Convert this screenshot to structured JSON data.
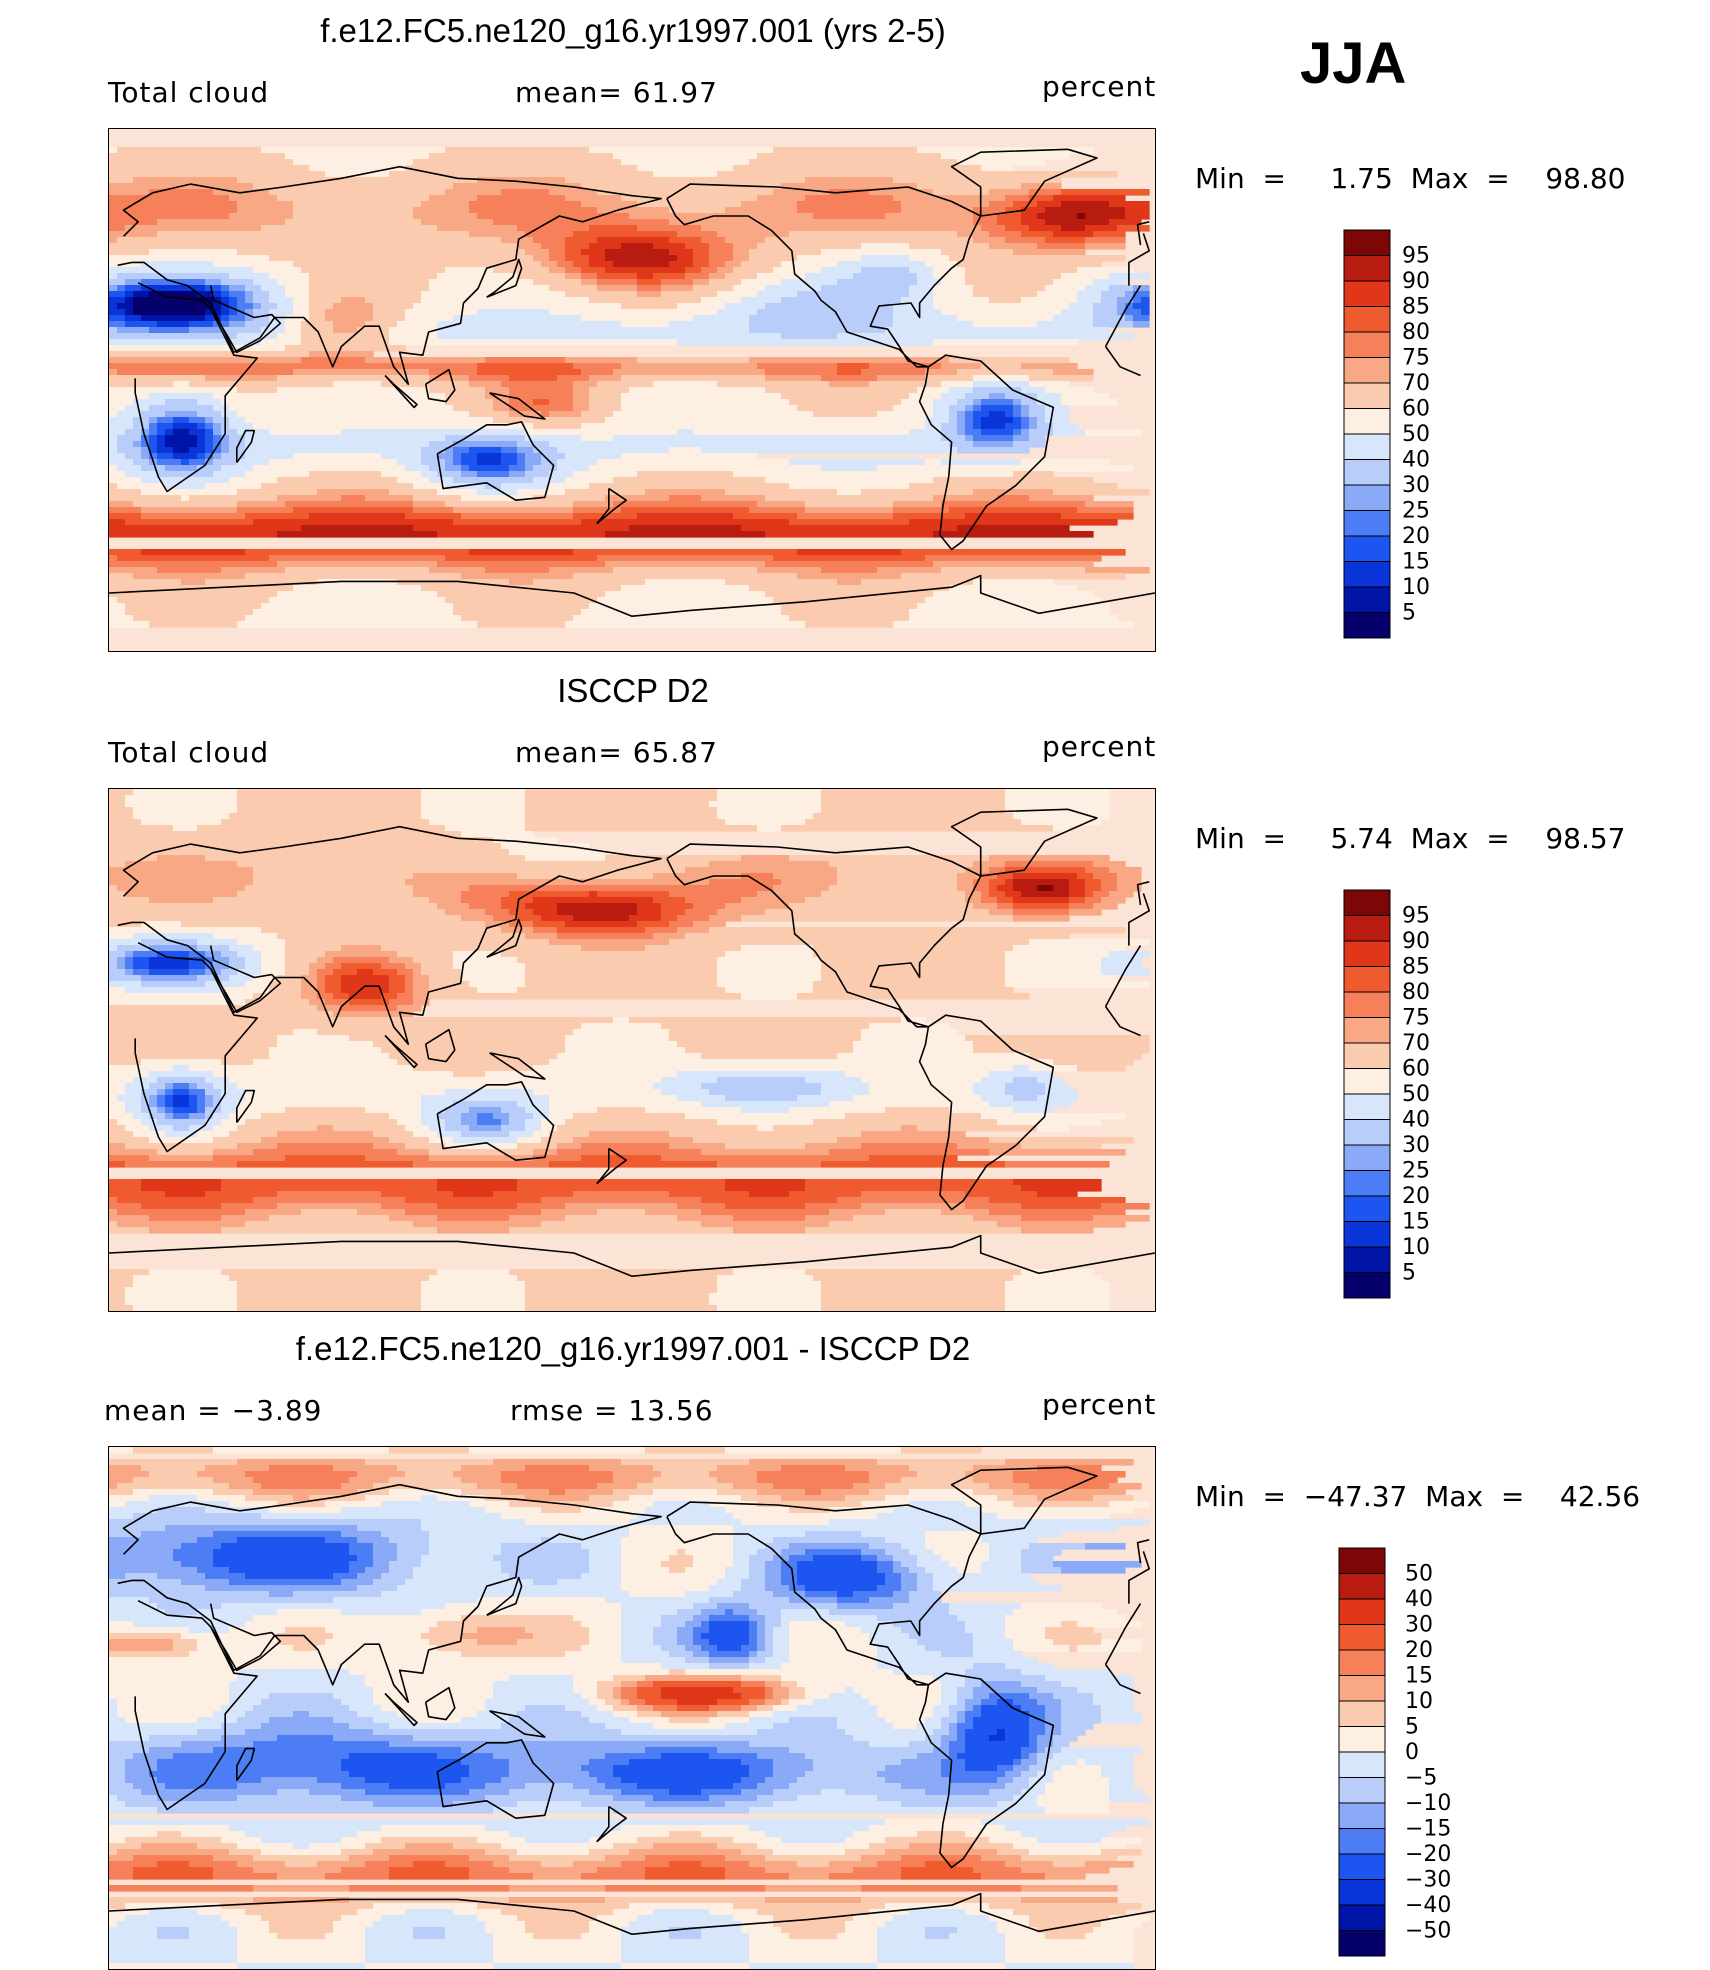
{
  "season": "JJA",
  "colors": {
    "seq": [
      "#05006b",
      "#0015a7",
      "#0a35d8",
      "#1d55f0",
      "#4c7df5",
      "#8aaaf7",
      "#b8cdf9",
      "#d8e6fb",
      "#fdefe2",
      "#fbcbb0",
      "#f8a884",
      "#f5805a",
      "#f05a2f",
      "#e0361a",
      "#b81c10",
      "#7d0707"
    ],
    "diff": [
      "#05006b",
      "#0015a7",
      "#0a35d8",
      "#1d55f0",
      "#4c7df5",
      "#8aaaf7",
      "#b8cdf9",
      "#d8e6fb",
      "#fdefe2",
      "#fbcbb0",
      "#f8a884",
      "#f5805a",
      "#f05a2f",
      "#e0361a",
      "#b81c10",
      "#7d0707"
    ]
  },
  "chart_data": [
    {
      "type": "heatmap",
      "title": "f.e12.FC5.ne120_g16.yr1997.001 (yrs 2-5)",
      "left_label": "Total cloud",
      "mean_label": "mean=   61.97",
      "units": "percent",
      "minmax": "Min  =     1.75  Max  =    98.80",
      "min": 1.75,
      "max": 98.8,
      "mean": 61.97,
      "levels": [
        "95",
        "90",
        "85",
        "80",
        "75",
        "70",
        "60",
        "50",
        "40",
        "30",
        "25",
        "20",
        "15",
        "10",
        "5"
      ]
    },
    {
      "type": "heatmap",
      "title": "ISCCP D2",
      "left_label": "Total cloud",
      "mean_label": "mean=   65.87",
      "units": "percent",
      "minmax": "Min  =     5.74  Max  =    98.57",
      "min": 5.74,
      "max": 98.57,
      "mean": 65.87,
      "levels": [
        "95",
        "90",
        "85",
        "80",
        "75",
        "70",
        "60",
        "50",
        "40",
        "30",
        "25",
        "20",
        "15",
        "10",
        "5"
      ]
    },
    {
      "type": "heatmap",
      "title": "f.e12.FC5.ne120_g16.yr1997.001 - ISCCP D2",
      "left_label": "mean  =    −3.89",
      "mean_label": "rmse  =    13.56",
      "units": "percent",
      "minmax": "Min  =  −47.37  Max  =    42.56",
      "min": -47.37,
      "max": 42.56,
      "mean": -3.89,
      "rmse": 13.56,
      "levels": [
        "50",
        "40",
        "30",
        "20",
        "15",
        "10",
        "5",
        "0",
        "−5",
        "−10",
        "−15",
        "−20",
        "−30",
        "−40",
        "−50"
      ]
    }
  ]
}
